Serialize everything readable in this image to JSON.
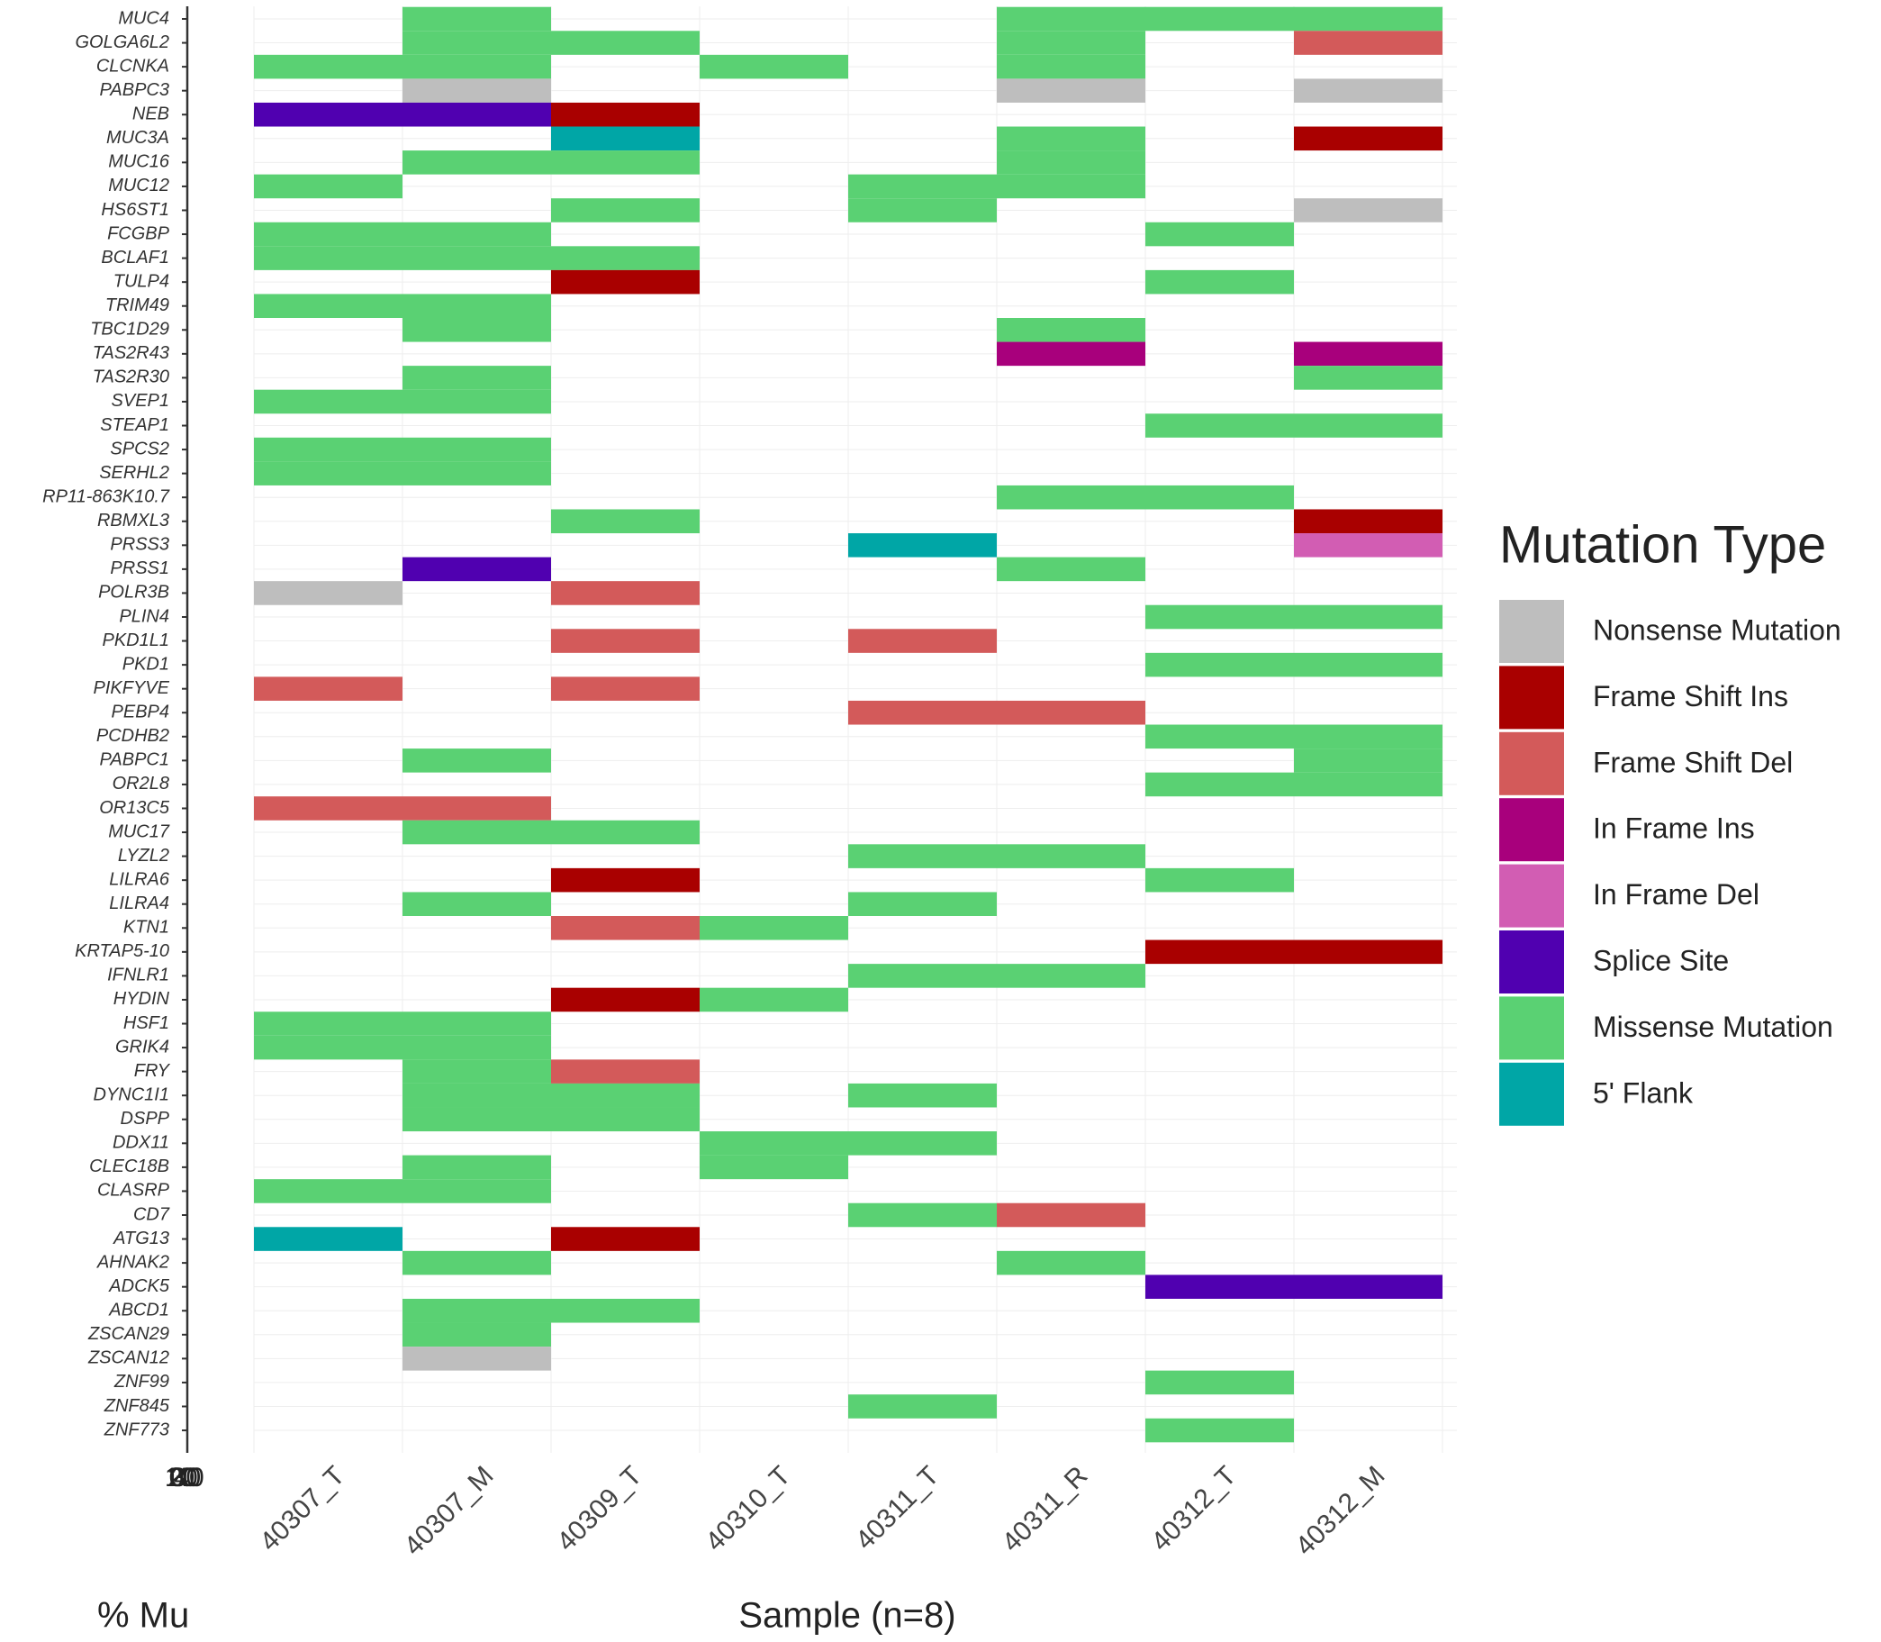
{
  "chart_data": {
    "type": "heatmap",
    "x_label": "Sample (n=8)",
    "percent_axis": {
      "label": "% Mu",
      "xlim": [
        0,
        40
      ],
      "xticks": [
        0,
        10,
        20,
        30,
        40
      ]
    },
    "samples": [
      "40307_T",
      "40307_M",
      "40309_T",
      "40310_T",
      "40311_T",
      "40311_R",
      "40312_T",
      "40312_M"
    ],
    "genes": [
      "MUC4",
      "GOLGA6L2",
      "CLCNKA",
      "PABPC3",
      "NEB",
      "MUC3A",
      "MUC16",
      "MUC12",
      "HS6ST1",
      "FCGBP",
      "BCLAF1",
      "TULP4",
      "TRIM49",
      "TBC1D29",
      "TAS2R43",
      "TAS2R30",
      "SVEP1",
      "STEAP1",
      "SPCS2",
      "SERHL2",
      "RP11-863K10.7",
      "RBMXL3",
      "PRSS3",
      "PRSS1",
      "POLR3B",
      "PLIN4",
      "PKD1L1",
      "PKD1",
      "PIKFYVE",
      "PEBP4",
      "PCDHB2",
      "PABPC1",
      "OR2L8",
      "OR13C5",
      "MUC17",
      "LYZL2",
      "LILRA6",
      "LILRA4",
      "KTN1",
      "KRTAP5-10",
      "IFNLR1",
      "HYDIN",
      "HSF1",
      "GRIK4",
      "FRY",
      "DYNC1I1",
      "DSPP",
      "DDX11",
      "CLEC18B",
      "CLASRP",
      "CD7",
      "ATG13",
      "AHNAK2",
      "ADCK5",
      "ABCD1",
      "ZSCAN29",
      "ZSCAN12",
      "ZNF99",
      "ZNF845",
      "ZNF773"
    ],
    "grid": true,
    "legend": {
      "title": "Mutation Type",
      "position": "right",
      "entries": [
        {
          "name": "Nonsense Mutation",
          "color": "#bebebe"
        },
        {
          "name": "Frame Shift Ins",
          "color": "#a90000"
        },
        {
          "name": "Frame Shift Del",
          "color": "#d35a5a"
        },
        {
          "name": "In Frame Ins",
          "color": "#a8007c"
        },
        {
          "name": "In Frame Del",
          "color": "#d25db3"
        },
        {
          "name": "Splice Site",
          "color": "#5000b0"
        },
        {
          "name": "Missense Mutation",
          "color": "#5ad173"
        },
        {
          "name": "5' Flank",
          "color": "#00a6a6"
        }
      ]
    },
    "cells": [
      [
        null,
        "Missense Mutation",
        null,
        null,
        null,
        "Missense Mutation",
        "Missense Mutation",
        "Missense Mutation"
      ],
      [
        null,
        "Missense Mutation",
        "Missense Mutation",
        null,
        null,
        "Missense Mutation",
        null,
        "Frame Shift Del"
      ],
      [
        "Missense Mutation",
        "Missense Mutation",
        null,
        "Missense Mutation",
        null,
        "Missense Mutation",
        null,
        null
      ],
      [
        null,
        "Nonsense Mutation",
        null,
        null,
        null,
        "Nonsense Mutation",
        null,
        "Nonsense Mutation"
      ],
      [
        "Splice Site",
        "Splice Site",
        "Frame Shift Ins",
        null,
        null,
        null,
        null,
        null
      ],
      [
        null,
        null,
        "5' Flank",
        null,
        null,
        "Missense Mutation",
        null,
        "Frame Shift Ins"
      ],
      [
        null,
        "Missense Mutation",
        "Missense Mutation",
        null,
        null,
        "Missense Mutation",
        null,
        null
      ],
      [
        "Missense Mutation",
        null,
        null,
        null,
        "Missense Mutation",
        "Missense Mutation",
        null,
        null
      ],
      [
        null,
        null,
        "Missense Mutation",
        null,
        "Missense Mutation",
        null,
        null,
        "Nonsense Mutation"
      ],
      [
        "Missense Mutation",
        "Missense Mutation",
        null,
        null,
        null,
        null,
        "Missense Mutation",
        null
      ],
      [
        "Missense Mutation",
        "Missense Mutation",
        "Missense Mutation",
        null,
        null,
        null,
        null,
        null
      ],
      [
        null,
        null,
        "Frame Shift Ins",
        null,
        null,
        null,
        "Missense Mutation",
        null
      ],
      [
        "Missense Mutation",
        "Missense Mutation",
        null,
        null,
        null,
        null,
        null,
        null
      ],
      [
        null,
        "Missense Mutation",
        null,
        null,
        null,
        "Missense Mutation",
        null,
        null
      ],
      [
        null,
        null,
        null,
        null,
        null,
        "In Frame Ins",
        null,
        "In Frame Ins"
      ],
      [
        null,
        "Missense Mutation",
        null,
        null,
        null,
        null,
        null,
        "Missense Mutation"
      ],
      [
        "Missense Mutation",
        "Missense Mutation",
        null,
        null,
        null,
        null,
        null,
        null
      ],
      [
        null,
        null,
        null,
        null,
        null,
        null,
        "Missense Mutation",
        "Missense Mutation"
      ],
      [
        "Missense Mutation",
        "Missense Mutation",
        null,
        null,
        null,
        null,
        null,
        null
      ],
      [
        "Missense Mutation",
        "Missense Mutation",
        null,
        null,
        null,
        null,
        null,
        null
      ],
      [
        null,
        null,
        null,
        null,
        null,
        "Missense Mutation",
        "Missense Mutation",
        null
      ],
      [
        null,
        null,
        "Missense Mutation",
        null,
        null,
        null,
        null,
        "Frame Shift Ins"
      ],
      [
        null,
        null,
        null,
        null,
        "5' Flank",
        null,
        null,
        "In Frame Del"
      ],
      [
        null,
        "Splice Site",
        null,
        null,
        null,
        "Missense Mutation",
        null,
        null
      ],
      [
        "Nonsense Mutation",
        null,
        "Frame Shift Del",
        null,
        null,
        null,
        null,
        null
      ],
      [
        null,
        null,
        null,
        null,
        null,
        null,
        "Missense Mutation",
        "Missense Mutation"
      ],
      [
        null,
        null,
        "Frame Shift Del",
        null,
        "Frame Shift Del",
        null,
        null,
        null
      ],
      [
        null,
        null,
        null,
        null,
        null,
        null,
        "Missense Mutation",
        "Missense Mutation"
      ],
      [
        "Frame Shift Del",
        null,
        "Frame Shift Del",
        null,
        null,
        null,
        null,
        null
      ],
      [
        null,
        null,
        null,
        null,
        "Frame Shift Del",
        "Frame Shift Del",
        null,
        null
      ],
      [
        null,
        null,
        null,
        null,
        null,
        null,
        "Missense Mutation",
        "Missense Mutation"
      ],
      [
        null,
        "Missense Mutation",
        null,
        null,
        null,
        null,
        null,
        "Missense Mutation"
      ],
      [
        null,
        null,
        null,
        null,
        null,
        null,
        "Missense Mutation",
        "Missense Mutation"
      ],
      [
        "Frame Shift Del",
        "Frame Shift Del",
        null,
        null,
        null,
        null,
        null,
        null
      ],
      [
        null,
        "Missense Mutation",
        "Missense Mutation",
        null,
        null,
        null,
        null,
        null
      ],
      [
        null,
        null,
        null,
        null,
        "Missense Mutation",
        "Missense Mutation",
        null,
        null
      ],
      [
        null,
        null,
        "Frame Shift Ins",
        null,
        null,
        null,
        "Missense Mutation",
        null
      ],
      [
        null,
        "Missense Mutation",
        null,
        null,
        "Missense Mutation",
        null,
        null,
        null
      ],
      [
        null,
        null,
        "Frame Shift Del",
        "Missense Mutation",
        null,
        null,
        null,
        null
      ],
      [
        null,
        null,
        null,
        null,
        null,
        null,
        "Frame Shift Ins",
        "Frame Shift Ins"
      ],
      [
        null,
        null,
        null,
        null,
        "Missense Mutation",
        "Missense Mutation",
        null,
        null
      ],
      [
        null,
        null,
        "Frame Shift Ins",
        "Missense Mutation",
        null,
        null,
        null,
        null
      ],
      [
        "Missense Mutation",
        "Missense Mutation",
        null,
        null,
        null,
        null,
        null,
        null
      ],
      [
        "Missense Mutation",
        "Missense Mutation",
        null,
        null,
        null,
        null,
        null,
        null
      ],
      [
        null,
        "Missense Mutation",
        "Frame Shift Del",
        null,
        null,
        null,
        null,
        null
      ],
      [
        null,
        "Missense Mutation",
        "Missense Mutation",
        null,
        "Missense Mutation",
        null,
        null,
        null
      ],
      [
        null,
        "Missense Mutation",
        "Missense Mutation",
        null,
        null,
        null,
        null,
        null
      ],
      [
        null,
        null,
        null,
        "Missense Mutation",
        "Missense Mutation",
        null,
        null,
        null
      ],
      [
        null,
        "Missense Mutation",
        null,
        "Missense Mutation",
        null,
        null,
        null,
        null
      ],
      [
        "Missense Mutation",
        "Missense Mutation",
        null,
        null,
        null,
        null,
        null,
        null
      ],
      [
        null,
        null,
        null,
        null,
        "Missense Mutation",
        "Frame Shift Del",
        null,
        null
      ],
      [
        "5' Flank",
        null,
        "Frame Shift Ins",
        null,
        null,
        null,
        null,
        null
      ],
      [
        null,
        "Missense Mutation",
        null,
        null,
        null,
        "Missense Mutation",
        null,
        null
      ],
      [
        null,
        null,
        null,
        null,
        null,
        null,
        "Splice Site",
        "Splice Site"
      ],
      [
        null,
        "Missense Mutation",
        "Missense Mutation",
        null,
        null,
        null,
        null,
        null
      ],
      [
        null,
        "Missense Mutation",
        null,
        null,
        null,
        null,
        null,
        null
      ],
      [
        null,
        "Nonsense Mutation",
        null,
        null,
        null,
        null,
        null,
        null
      ],
      [
        null,
        null,
        null,
        null,
        null,
        null,
        "Missense Mutation",
        null
      ],
      [
        null,
        null,
        null,
        null,
        "Missense Mutation",
        null,
        null,
        null
      ],
      [
        null,
        null,
        null,
        null,
        null,
        null,
        "Missense Mutation",
        null
      ]
    ]
  }
}
